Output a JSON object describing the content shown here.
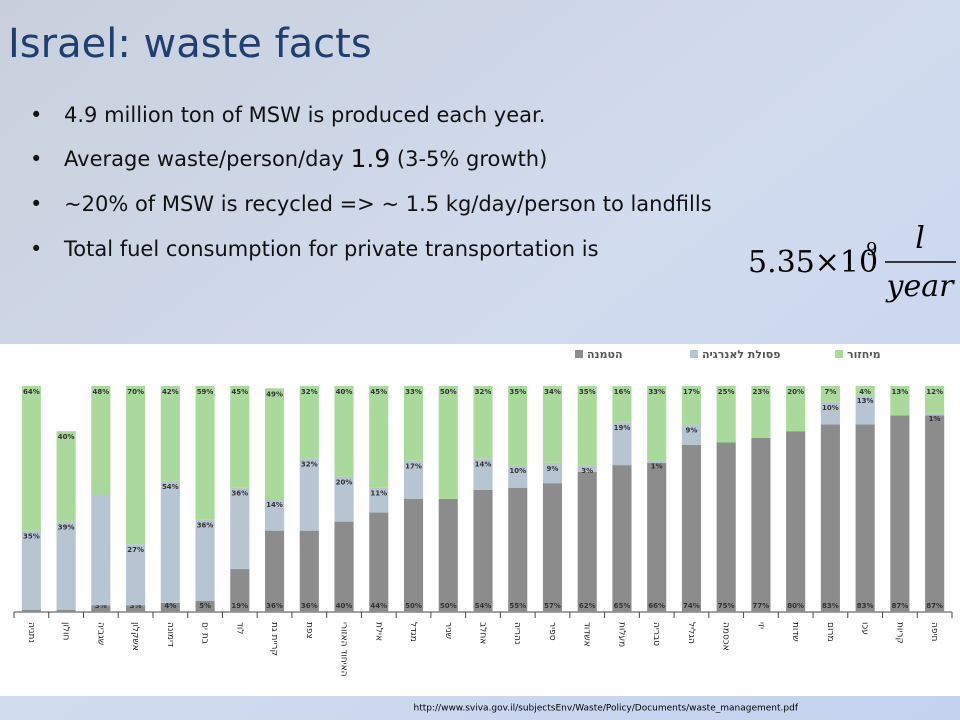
{
  "slide": {
    "title": "Israel: waste facts",
    "bullets": [
      [
        "4.9 million ton of MSW is produced each year."
      ],
      [
        "Average waste/person/day ",
        "1.9",
        " (3-5% growth)"
      ],
      [
        "~20% of MSW is recycled => ~ 1.5 kg/day/person to landfills"
      ],
      [
        "Total fuel consumption for private transportation is"
      ]
    ],
    "formula": {
      "coefficient": "5.35×10",
      "exponent": "9",
      "numerator": "l",
      "denominator": "year"
    },
    "source": "http://www.sviva.gov.il/subjectsEnv/Waste/Policy/Documents/waste_management.pdf"
  },
  "chart_data": {
    "type": "stacked_bar",
    "categories": [
      "נתניה",
      "חולון",
      "שגביה",
      "אשקלון",
      "דימונה",
      "בת ים",
      "לוד",
      "קריית גת",
      "צפת",
      "האיחוד האזורי",
      "אילת",
      "מגדל",
      "שניר",
      "אחלב",
      "נהריה",
      "ספיר",
      "אשדוד",
      "מעלות",
      "טבריה",
      "הגליל",
      "אכסמה",
      "יזי",
      "שדות",
      "מרום",
      "עכו",
      "קריות",
      "חיפה"
    ],
    "series": [
      {
        "name": "הטמנה",
        "color": "#8c8c8c",
        "values": [
          1,
          1,
          3,
          3,
          4,
          5,
          19,
          36,
          36,
          40,
          44,
          50,
          50,
          54,
          55,
          57,
          62,
          65,
          66,
          74,
          75,
          77,
          80,
          83,
          83,
          87,
          87
        ],
        "value_labels": [
          "1%",
          "1%",
          "3%",
          "3%",
          "4%",
          "5%",
          "19%",
          "36%",
          "36%",
          "40%",
          "44%",
          "50%",
          "50%",
          "54%",
          "55%",
          "57%",
          "62%",
          "65%",
          "66%",
          "74%",
          "75%",
          "77%",
          "80%",
          "83%",
          "83%",
          "87%",
          "87%"
        ]
      },
      {
        "name": "פסולת לאנרגיה",
        "color": "#b7c5d3",
        "values": [
          35,
          39,
          49,
          27,
          54,
          36,
          36,
          14,
          32,
          20,
          11,
          17,
          0,
          14,
          10,
          9,
          3,
          19,
          1,
          9,
          0,
          0,
          0,
          10,
          13,
          0,
          1
        ],
        "value_labels": [
          "35%",
          "39%",
          null,
          "27%",
          "54%",
          "36%",
          "36%",
          "14%",
          "32%",
          "20%",
          "11%",
          "17%",
          null,
          "14%",
          "10%",
          "9%",
          "3%",
          "19%",
          "1%",
          "9%",
          null,
          null,
          null,
          "10%",
          "13%",
          null,
          "1%"
        ]
      },
      {
        "name": "מיחזור",
        "color": "#a9d99b",
        "values": [
          64,
          40,
          48,
          70,
          42,
          59,
          45,
          49,
          32,
          40,
          45,
          33,
          50,
          32,
          35,
          34,
          35,
          16,
          33,
          17,
          25,
          23,
          20,
          7,
          4,
          13,
          12
        ],
        "value_labels": [
          "64%",
          "40%",
          "48%",
          "70%",
          "42%",
          "59%",
          "45%",
          "49%",
          "32%",
          "40%",
          "45%",
          "33%",
          "50%",
          "32%",
          "35%",
          "34%",
          "35%",
          "16%",
          "33%",
          "17%",
          "25%",
          "23%",
          "20%",
          "7%",
          "4%",
          "13%",
          "12%"
        ]
      }
    ],
    "ylim": [
      0,
      100
    ],
    "legend": "top-right"
  }
}
